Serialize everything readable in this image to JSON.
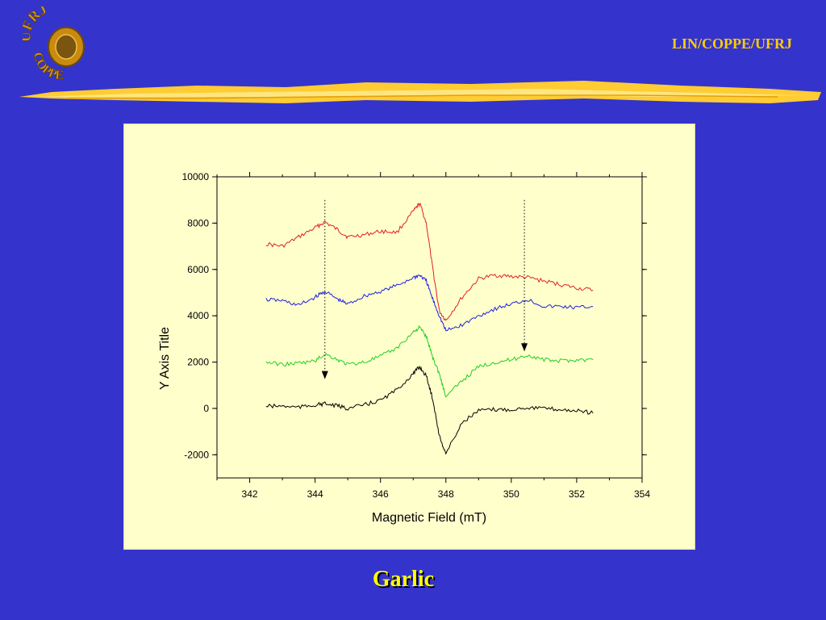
{
  "header": {
    "org_text": "LIN/COPPE/UFRJ",
    "logo": {
      "icon": "ufrj-coppe-logo-icon",
      "letters_top": "UFRJ",
      "letters_bottom": "COPPE"
    }
  },
  "caption": "Garlic",
  "colors": {
    "background": "#3434cc",
    "accent": "#ffcc00",
    "panel": "#ffffcc",
    "series": [
      "#e02020",
      "#2020e0",
      "#20d020",
      "#000000"
    ]
  },
  "chart_data": {
    "type": "line",
    "title": "",
    "xlabel": "Magnetic Field (mT)",
    "ylabel": "Y Axis Title",
    "xlim": [
      341,
      354
    ],
    "ylim": [
      -3000,
      10000
    ],
    "xticks": [
      342,
      344,
      346,
      348,
      350,
      352,
      354
    ],
    "xtick_labels": [
      "342",
      "344",
      "346",
      "348",
      "350",
      "352",
      "354"
    ],
    "yticks": [
      -2000,
      0,
      2000,
      4000,
      6000,
      8000,
      10000
    ],
    "ytick_labels": [
      "-2000",
      "0",
      "2000",
      "4000",
      "6000",
      "8000",
      "10000"
    ],
    "grid": false,
    "series": [
      {
        "color": "#e02020",
        "x": [
          342.5,
          343,
          343.5,
          344,
          344.3,
          344.7,
          345,
          345.5,
          346,
          346.5,
          347,
          347.2,
          347.4,
          347.6,
          347.8,
          348,
          348.5,
          349,
          349.5,
          350,
          350.5,
          351,
          351.5,
          352,
          352.5
        ],
        "y": [
          7100,
          7000,
          7400,
          7800,
          8050,
          7700,
          7400,
          7500,
          7650,
          7600,
          8500,
          8850,
          8000,
          6000,
          4200,
          3800,
          4800,
          5600,
          5750,
          5700,
          5650,
          5500,
          5350,
          5200,
          5100
        ]
      },
      {
        "color": "#2020e0",
        "x": [
          342.5,
          343,
          343.5,
          344,
          344.3,
          344.7,
          345,
          345.5,
          346,
          346.5,
          347,
          347.2,
          347.4,
          347.6,
          347.8,
          348,
          348.5,
          349,
          349.5,
          350,
          350.5,
          351,
          351.5,
          352,
          352.5
        ],
        "y": [
          4700,
          4650,
          4450,
          4800,
          5050,
          4700,
          4500,
          4850,
          5050,
          5300,
          5650,
          5750,
          5500,
          4700,
          4000,
          3350,
          3600,
          4000,
          4300,
          4500,
          4700,
          4400,
          4400,
          4350,
          4400
        ]
      },
      {
        "color": "#20d020",
        "x": [
          342.5,
          343,
          343.5,
          344,
          344.3,
          344.7,
          345,
          345.5,
          346,
          346.5,
          347,
          347.2,
          347.4,
          347.6,
          347.8,
          348,
          348.5,
          349,
          349.5,
          350,
          350.5,
          351,
          351.5,
          352,
          352.5
        ],
        "y": [
          2000,
          1900,
          1950,
          2050,
          2350,
          2100,
          1900,
          2000,
          2250,
          2600,
          3300,
          3500,
          3100,
          2200,
          1500,
          500,
          1200,
          1800,
          2000,
          2100,
          2300,
          2100,
          2050,
          2100,
          2100
        ]
      },
      {
        "color": "#000000",
        "x": [
          342.5,
          343,
          343.5,
          344,
          344.3,
          344.7,
          345,
          345.5,
          346,
          346.5,
          347,
          347.2,
          347.4,
          347.6,
          347.8,
          348,
          348.5,
          349,
          349.5,
          350,
          350.5,
          351,
          351.5,
          352,
          352.5
        ],
        "y": [
          100,
          100,
          50,
          150,
          200,
          100,
          0,
          150,
          350,
          800,
          1500,
          1800,
          1400,
          400,
          -1200,
          -1950,
          -600,
          -100,
          -50,
          -50,
          50,
          0,
          -50,
          -100,
          -200
        ]
      }
    ],
    "annotations": [
      {
        "type": "arrow",
        "x": 344.3,
        "from_y": 9000,
        "to_y": 1300,
        "style": "dotted"
      },
      {
        "type": "arrow",
        "x": 350.4,
        "from_y": 9000,
        "to_y": 2500,
        "style": "dotted"
      }
    ]
  }
}
